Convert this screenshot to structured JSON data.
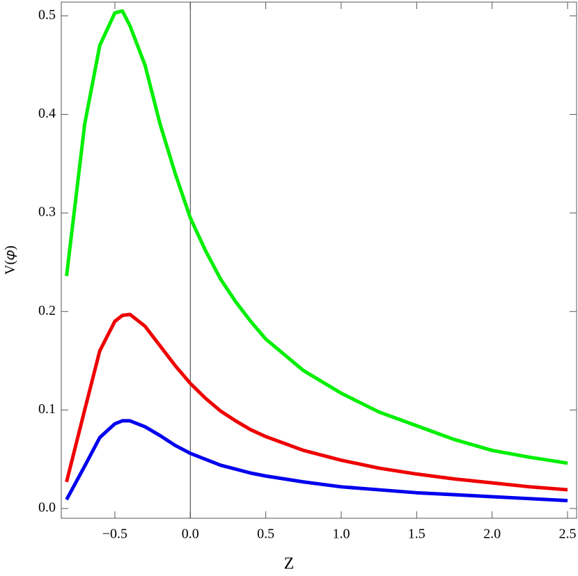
{
  "chart_data": {
    "type": "line",
    "x_label": "Z",
    "y_label": "V(𝜑)",
    "x": [
      -0.82,
      -0.7,
      -0.6,
      -0.5,
      -0.45,
      -0.4,
      -0.3,
      -0.2,
      -0.1,
      0.0,
      0.1,
      0.2,
      0.3,
      0.4,
      0.5,
      0.75,
      1.0,
      1.25,
      1.5,
      1.75,
      2.0,
      2.25,
      2.5
    ],
    "series": [
      {
        "color": "#00ee00",
        "values": [
          0.236,
          0.39,
          0.47,
          0.503,
          0.505,
          0.49,
          0.45,
          0.39,
          0.34,
          0.295,
          0.262,
          0.233,
          0.21,
          0.19,
          0.172,
          0.14,
          0.117,
          0.098,
          0.084,
          0.07,
          0.059,
          0.052,
          0.046
        ]
      },
      {
        "color": "#ee0000",
        "values": [
          0.027,
          0.1,
          0.16,
          0.19,
          0.196,
          0.197,
          0.185,
          0.165,
          0.145,
          0.127,
          0.112,
          0.099,
          0.089,
          0.08,
          0.073,
          0.059,
          0.049,
          0.041,
          0.035,
          0.03,
          0.026,
          0.022,
          0.019
        ]
      },
      {
        "color": "#0000ee",
        "values": [
          0.009,
          0.043,
          0.072,
          0.086,
          0.089,
          0.089,
          0.083,
          0.074,
          0.064,
          0.056,
          0.05,
          0.044,
          0.04,
          0.036,
          0.033,
          0.027,
          0.022,
          0.019,
          0.016,
          0.014,
          0.012,
          0.01,
          0.008
        ]
      }
    ],
    "xlim": [
      -0.855,
      2.56
    ],
    "ylim": [
      -0.0099,
      0.514
    ],
    "xticks": [
      {
        "value": -0.5,
        "label": "−0.5"
      },
      {
        "value": 0,
        "label": "0.0"
      },
      {
        "value": 0.5,
        "label": "0.5"
      },
      {
        "value": 1,
        "label": "1.0"
      },
      {
        "value": 1.5,
        "label": "1.5"
      },
      {
        "value": 2,
        "label": "2.0"
      },
      {
        "value": 2.5,
        "label": "2.5"
      }
    ],
    "yticks": [
      {
        "value": 0,
        "label": "0.0"
      },
      0.1,
      0.2,
      0.3,
      0.4,
      0.5
    ]
  }
}
